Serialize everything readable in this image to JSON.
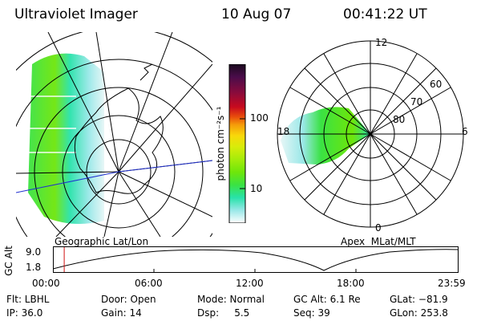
{
  "header": {
    "instrument": "Ultraviolet Imager",
    "date": "10 Aug 07",
    "time": "00:41:22 UT"
  },
  "colorbar": {
    "unit_label": "photon cm⁻²s⁻¹",
    "ticks": [
      "100",
      "10"
    ],
    "colors": [
      "#1a0a1e",
      "#4a0c4a",
      "#8a0b3c",
      "#c80a1e",
      "#e84c0c",
      "#f59a0a",
      "#f8d80a",
      "#d8ec0a",
      "#a4ec0a",
      "#6ee60a",
      "#3ae244",
      "#28e2aa",
      "#9ae8e8",
      "#ffffff"
    ]
  },
  "left_map": {
    "label": "Geographic Lat/Lon"
  },
  "right_map": {
    "label": "Apex  MLat/MLT",
    "mlt_labels": {
      "top": "12",
      "left": "18",
      "right": "6",
      "bottom": "0"
    },
    "lat_labels": [
      "60",
      "70",
      "80"
    ]
  },
  "altitude_plot": {
    "ylabel": "GC Alt",
    "yticks": [
      "9.0",
      "1.8"
    ],
    "xticks": [
      "00:00",
      "06:00",
      "12:00",
      "18:00",
      "23:59"
    ],
    "current_time_fraction": 0.028,
    "marker_color": "#d01010"
  },
  "info": {
    "flt": "Flt: LBHL",
    "ip": "IP: 36.0",
    "door": "Door: Open",
    "gain": "Gain: 14",
    "mode": "Mode: Normal",
    "dsp": "Dsp:     5.5",
    "gc_alt": "GC Alt: 6.1 Re",
    "seq": "Seq: 39",
    "glat": "GLat: −81.9",
    "glon": "GLon: 253.8"
  }
}
